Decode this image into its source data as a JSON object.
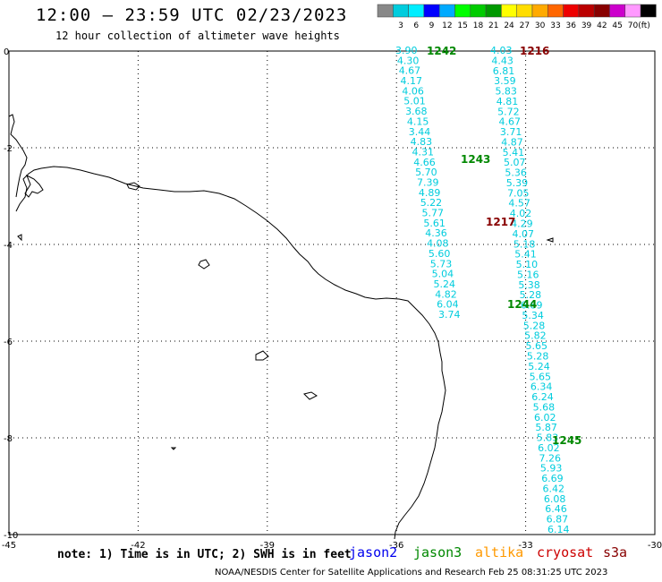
{
  "header": {
    "title": "12:00 — 23:59 UTC 02/23/2023",
    "subtitle": "12 hour collection of altimeter wave heights"
  },
  "legend": {
    "unit": "(ft)",
    "bins": [
      {
        "label": "",
        "color": "#888888"
      },
      {
        "label": "3",
        "color": "#00ccdd"
      },
      {
        "label": "6",
        "color": "#00eeff"
      },
      {
        "label": "9",
        "color": "#0000ff"
      },
      {
        "label": "12",
        "color": "#00aaff"
      },
      {
        "label": "15",
        "color": "#00ff00"
      },
      {
        "label": "18",
        "color": "#00cc00"
      },
      {
        "label": "21",
        "color": "#009900"
      },
      {
        "label": "24",
        "color": "#ffff00"
      },
      {
        "label": "27",
        "color": "#ffdd00"
      },
      {
        "label": "30",
        "color": "#ffaa00"
      },
      {
        "label": "33",
        "color": "#ff6600"
      },
      {
        "label": "36",
        "color": "#ee0000"
      },
      {
        "label": "39",
        "color": "#bb0000"
      },
      {
        "label": "42",
        "color": "#880000"
      },
      {
        "label": "45",
        "color": "#cc00cc"
      },
      {
        "label": "70",
        "color": "#ff99ff"
      },
      {
        "label": "",
        "color": "#000000"
      }
    ]
  },
  "axes": {
    "x_ticks": [
      "-45",
      "-42",
      "-39",
      "-36",
      "-33",
      "-30"
    ],
    "y_ticks": [
      "0",
      "-2",
      "-4",
      "-6",
      "-8",
      "-10"
    ]
  },
  "track_labels": [
    {
      "text": "1242",
      "color": "#008800"
    },
    {
      "text": "1216",
      "color": "#880000"
    },
    {
      "text": "1243",
      "color": "#008800"
    },
    {
      "text": "1217",
      "color": "#880000"
    },
    {
      "text": "1244",
      "color": "#008800"
    },
    {
      "text": "1245",
      "color": "#008800"
    }
  ],
  "wave_values": {
    "track_a": [
      "3.90",
      "4.30",
      "4.67",
      "4.17",
      "4.06",
      "5.01",
      "3.68",
      "4.15",
      "3.44",
      "4.83",
      "4.31",
      "4.66",
      "5.70",
      "7.39",
      "4.89",
      "5.22",
      "5.77",
      "5.61",
      "4.36",
      "4.08",
      "5.60",
      "5.73",
      "5.04",
      "5.24",
      "4.82",
      "6.04",
      "3.74"
    ],
    "track_b": [
      "4.03",
      "4.43",
      "6.81",
      "3.59",
      "5.83",
      "4.81",
      "5.72",
      "4.67",
      "3.71",
      "4.87",
      "5.41",
      "5.07",
      "5.36",
      "5.39",
      "7.05",
      "4.57",
      "4.02",
      "4.29",
      "4.07",
      "5.18",
      "5.41",
      "5.10",
      "5.16",
      "5.38",
      "5.28",
      "6.89",
      "5.34",
      "5.28",
      "5.82",
      "5.65",
      "5.28",
      "5.24",
      "5.65",
      "6.34",
      "6.24",
      "5.68",
      "6.02",
      "5.87",
      "5.83",
      "6.02",
      "7.26",
      "5.93",
      "6.69",
      "6.42",
      "6.08",
      "6.46",
      "6.87",
      "6.14"
    ]
  },
  "footer": {
    "note": "note:  1) Time is in UTC;  2) SWH is in feet",
    "satellites": [
      {
        "name": "jason2",
        "color": "#0000ee"
      },
      {
        "name": "jason3",
        "color": "#008800"
      },
      {
        "name": "altika",
        "color": "#ff9900"
      },
      {
        "name": "cryosat",
        "color": "#cc0000"
      },
      {
        "name": "s3a",
        "color": "#880000"
      }
    ],
    "credit": "NOAA/NESDIS Center for Satellite Applications and Research    Feb 25 08:31:25 UTC 2023"
  }
}
